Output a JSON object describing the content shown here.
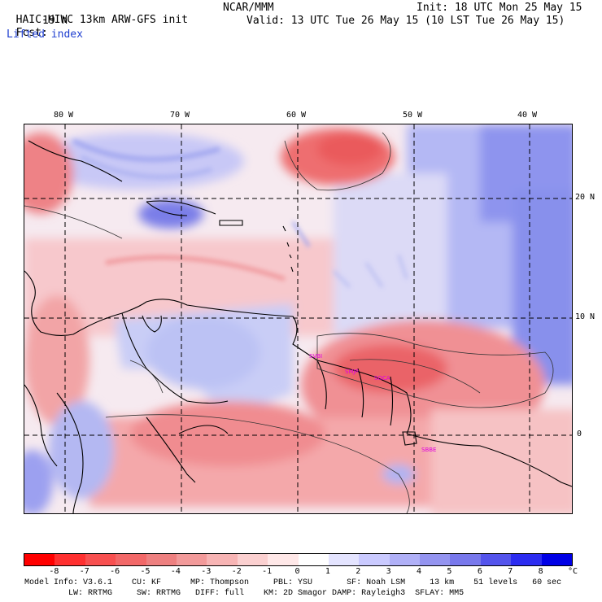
{
  "header": {
    "model_line": "HAIC-HIWC 13km ARW-GFS init",
    "org": "NCAR/MMM",
    "fcst_label": "Fcst:",
    "fcst_value": "19 h",
    "field_name": "Lifted index",
    "init": "Init: 18 UTC Mon 25 May 15",
    "valid": "Valid: 13 UTC Tue 26 May 15 (10 LST Tue 26 May 15)"
  },
  "map": {
    "lon_labels": [
      "80 W",
      "70 W",
      "60 W",
      "50 W",
      "40 W"
    ],
    "lat_labels": [
      "20 N",
      "10 N",
      "0"
    ],
    "station_labels": [
      "SVBI",
      "SMJP",
      "SOCA",
      "SBBE"
    ]
  },
  "colorbar": {
    "unit": "°C",
    "ticks": [
      "-8",
      "-7",
      "-6",
      "-5",
      "-4",
      "-3",
      "-2",
      "-1",
      "0",
      "1",
      "2",
      "3",
      "4",
      "5",
      "6",
      "7",
      "8"
    ],
    "colors": [
      "#ff0000",
      "#ff3030",
      "#f85050",
      "#f26868",
      "#ee8080",
      "#f29a9a",
      "#f7b4b4",
      "#fbd0d0",
      "#ffe8e8",
      "#ffffff",
      "#e4e4ff",
      "#cacaff",
      "#b0b0f7",
      "#9494f0",
      "#7878ec",
      "#5454ec",
      "#2c2cf0",
      "#0000e6"
    ]
  },
  "footer": {
    "line1": "Model Info: V3.6.1    CU: KF      MP: Thompson     PBL: YSU       SF: Noah LSM     13 km    51 levels   60 sec",
    "line2": "         LW: RRTMG     SW: RRTMG   DIFF: full    KM: 2D Smagor DAMP: Rayleigh3  SFLAY: MM5"
  }
}
